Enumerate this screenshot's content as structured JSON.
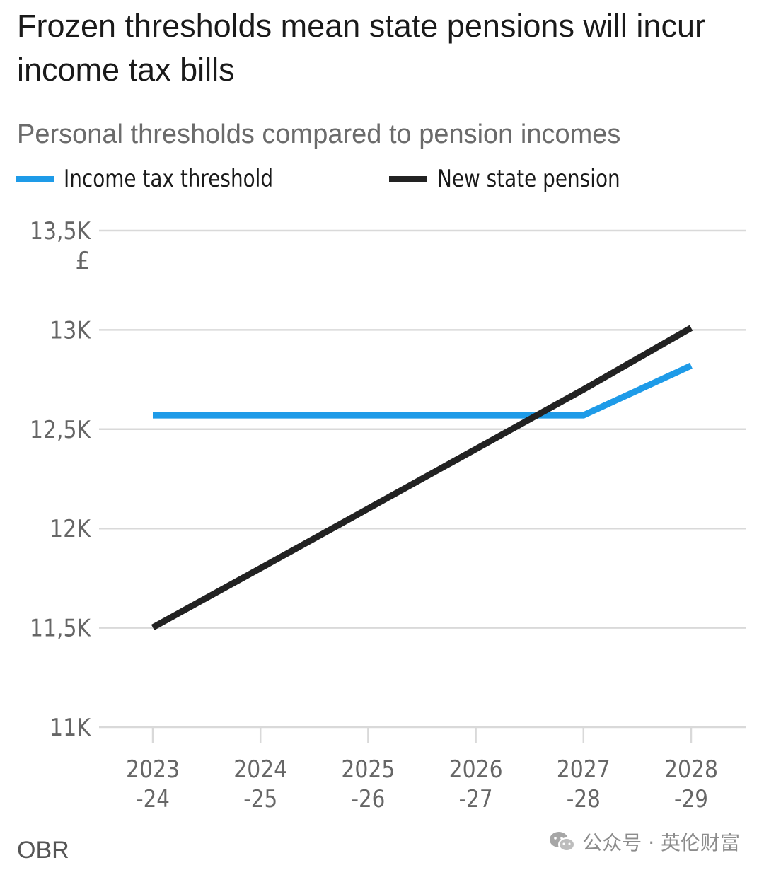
{
  "title": "Frozen thresholds mean state pensions will incur income tax bills",
  "subtitle": "Personal thresholds compared to pension incomes",
  "source": "OBR",
  "watermark": {
    "text": "公众号 · 英伦财富",
    "icon": "wechat-icon"
  },
  "colors": {
    "threshold": "#1e9be8",
    "pension": "#222222",
    "grid": "#d9d9d9"
  },
  "legend": [
    {
      "label": "Income tax threshold",
      "color": "#1e9be8"
    },
    {
      "label": "New state pension",
      "color": "#222222"
    }
  ],
  "chart_data": {
    "type": "line",
    "title": "Frozen thresholds mean state pensions will incur income tax bills",
    "subtitle": "Personal thresholds compared to pension incomes",
    "x_categories": [
      "2023\n-24",
      "2024\n-25",
      "2025\n-26",
      "2026\n-27",
      "2027\n-28",
      "2028\n-29"
    ],
    "y_unit": "£",
    "ylim": [
      11000,
      13500
    ],
    "yticks": [
      {
        "value": 11000,
        "label": "11K"
      },
      {
        "value": 11500,
        "label": "11,5K"
      },
      {
        "value": 12000,
        "label": "12K"
      },
      {
        "value": 12500,
        "label": "12,5K"
      },
      {
        "value": 13000,
        "label": "13K"
      },
      {
        "value": 13500,
        "label": "13,5K"
      }
    ],
    "grid": true,
    "legend_position": "top-left",
    "series": [
      {
        "name": "Income tax threshold",
        "color": "#1e9be8",
        "values": [
          12570,
          12570,
          12570,
          12570,
          12570,
          12820
        ]
      },
      {
        "name": "New state pension",
        "color": "#222222",
        "values": [
          11502,
          11800,
          12100,
          12400,
          12700,
          13010
        ]
      }
    ]
  }
}
